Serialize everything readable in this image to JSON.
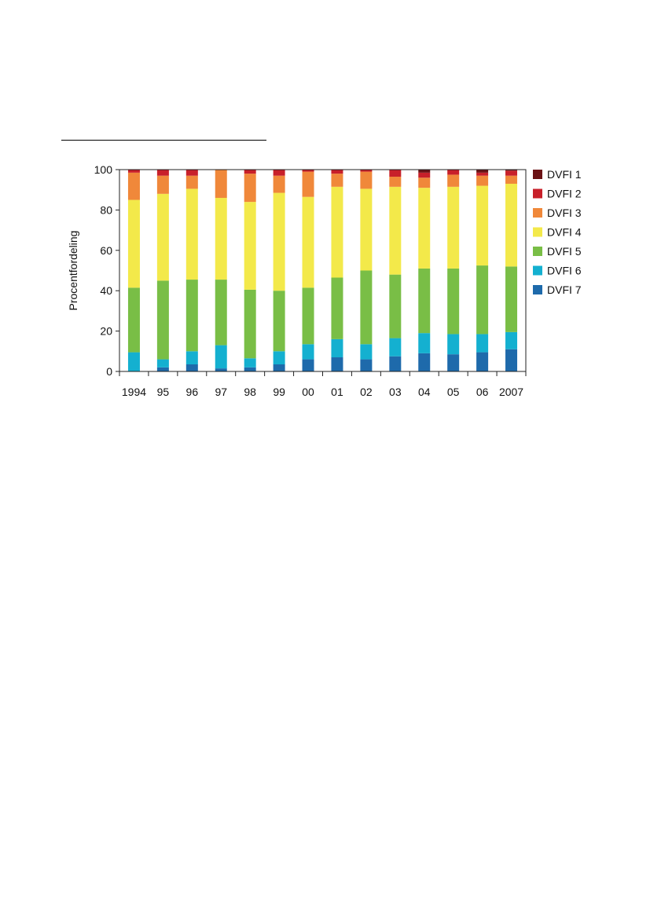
{
  "chart_data": {
    "type": "bar",
    "stacked": true,
    "categories": [
      "1994",
      "95",
      "96",
      "97",
      "98",
      "99",
      "00",
      "01",
      "02",
      "03",
      "04",
      "05",
      "06",
      "2007"
    ],
    "ylabel": "Procentfordeling",
    "xlabel": "",
    "ylim": [
      0,
      100
    ],
    "yticks": [
      0,
      20,
      40,
      60,
      80,
      100
    ],
    "grid": false,
    "legend_position": "right",
    "stack_order": [
      "DVFI 7",
      "DVFI 6",
      "DVFI 5",
      "DVFI 4",
      "DVFI 3",
      "DVFI 2",
      "DVFI 1"
    ],
    "series": [
      {
        "name": "DVFI 1",
        "color": "#6b1215",
        "values": [
          0,
          0,
          0,
          0,
          0,
          0,
          0,
          0,
          0,
          0,
          1.5,
          0,
          1.5,
          0.5
        ]
      },
      {
        "name": "DVFI 2",
        "color": "#c8202a",
        "values": [
          1.5,
          3,
          3,
          0,
          2,
          3,
          1,
          2,
          1,
          3.5,
          2.5,
          2.5,
          1.5,
          2.5
        ]
      },
      {
        "name": "DVFI 3",
        "color": "#f0883a",
        "values": [
          13.5,
          9,
          6.5,
          14,
          14,
          8.5,
          12.5,
          6.5,
          8.5,
          5,
          5,
          6,
          5,
          4
        ]
      },
      {
        "name": "DVFI 4",
        "color": "#f3e94a",
        "values": [
          43.5,
          43,
          45,
          40.5,
          43.5,
          48.5,
          45,
          45,
          40.5,
          43.5,
          40,
          40.5,
          39.5,
          41
        ]
      },
      {
        "name": "DVFI 5",
        "color": "#79be46",
        "values": [
          32,
          39,
          35.5,
          32.5,
          34,
          30,
          28,
          30.5,
          36.5,
          31.5,
          32,
          32.5,
          34,
          32.5
        ]
      },
      {
        "name": "DVFI 6",
        "color": "#14b0d0",
        "values": [
          9.5,
          4,
          6.5,
          11.5,
          4.5,
          6.5,
          7.5,
          9,
          7.5,
          9,
          10,
          10,
          9,
          8.5
        ]
      },
      {
        "name": "DVFI 7",
        "color": "#1e6aab",
        "values": [
          0,
          2,
          3.5,
          1.5,
          2,
          3.5,
          6,
          7,
          6,
          7.5,
          9,
          8.5,
          9.5,
          11
        ]
      }
    ]
  }
}
